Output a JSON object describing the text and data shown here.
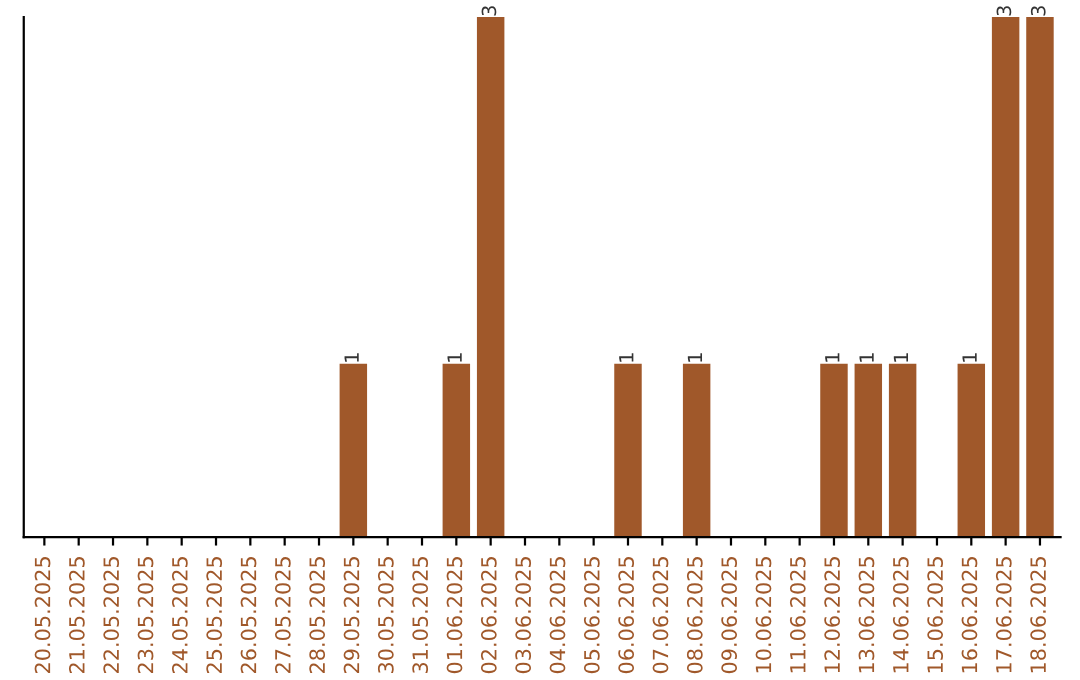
{
  "chart_data": {
    "type": "bar",
    "categories": [
      "20.05.2025",
      "21.05.2025",
      "22.05.2025",
      "23.05.2025",
      "24.05.2025",
      "25.05.2025",
      "26.05.2025",
      "27.05.2025",
      "28.05.2025",
      "29.05.2025",
      "30.05.2025",
      "31.05.2025",
      "01.06.2025",
      "02.06.2025",
      "03.06.2025",
      "04.06.2025",
      "05.06.2025",
      "06.06.2025",
      "07.06.2025",
      "08.06.2025",
      "09.06.2025",
      "10.06.2025",
      "11.06.2025",
      "12.06.2025",
      "13.06.2025",
      "14.06.2025",
      "15.06.2025",
      "16.06.2025",
      "17.06.2025",
      "18.06.2025"
    ],
    "values": [
      0,
      0,
      0,
      0,
      0,
      0,
      0,
      0,
      0,
      1,
      0,
      0,
      1,
      3,
      0,
      0,
      0,
      1,
      0,
      1,
      0,
      0,
      0,
      1,
      1,
      1,
      0,
      1,
      3,
      3
    ],
    "value_labels": [
      null,
      null,
      null,
      null,
      null,
      null,
      null,
      null,
      null,
      "1",
      null,
      null,
      "1",
      "3",
      null,
      null,
      null,
      "1",
      null,
      "1",
      null,
      null,
      null,
      "1",
      "1",
      "1",
      null,
      "1",
      "3",
      "3"
    ],
    "color": "#a0582a",
    "tick_labels": "x",
    "grid": false,
    "legend": false
  }
}
